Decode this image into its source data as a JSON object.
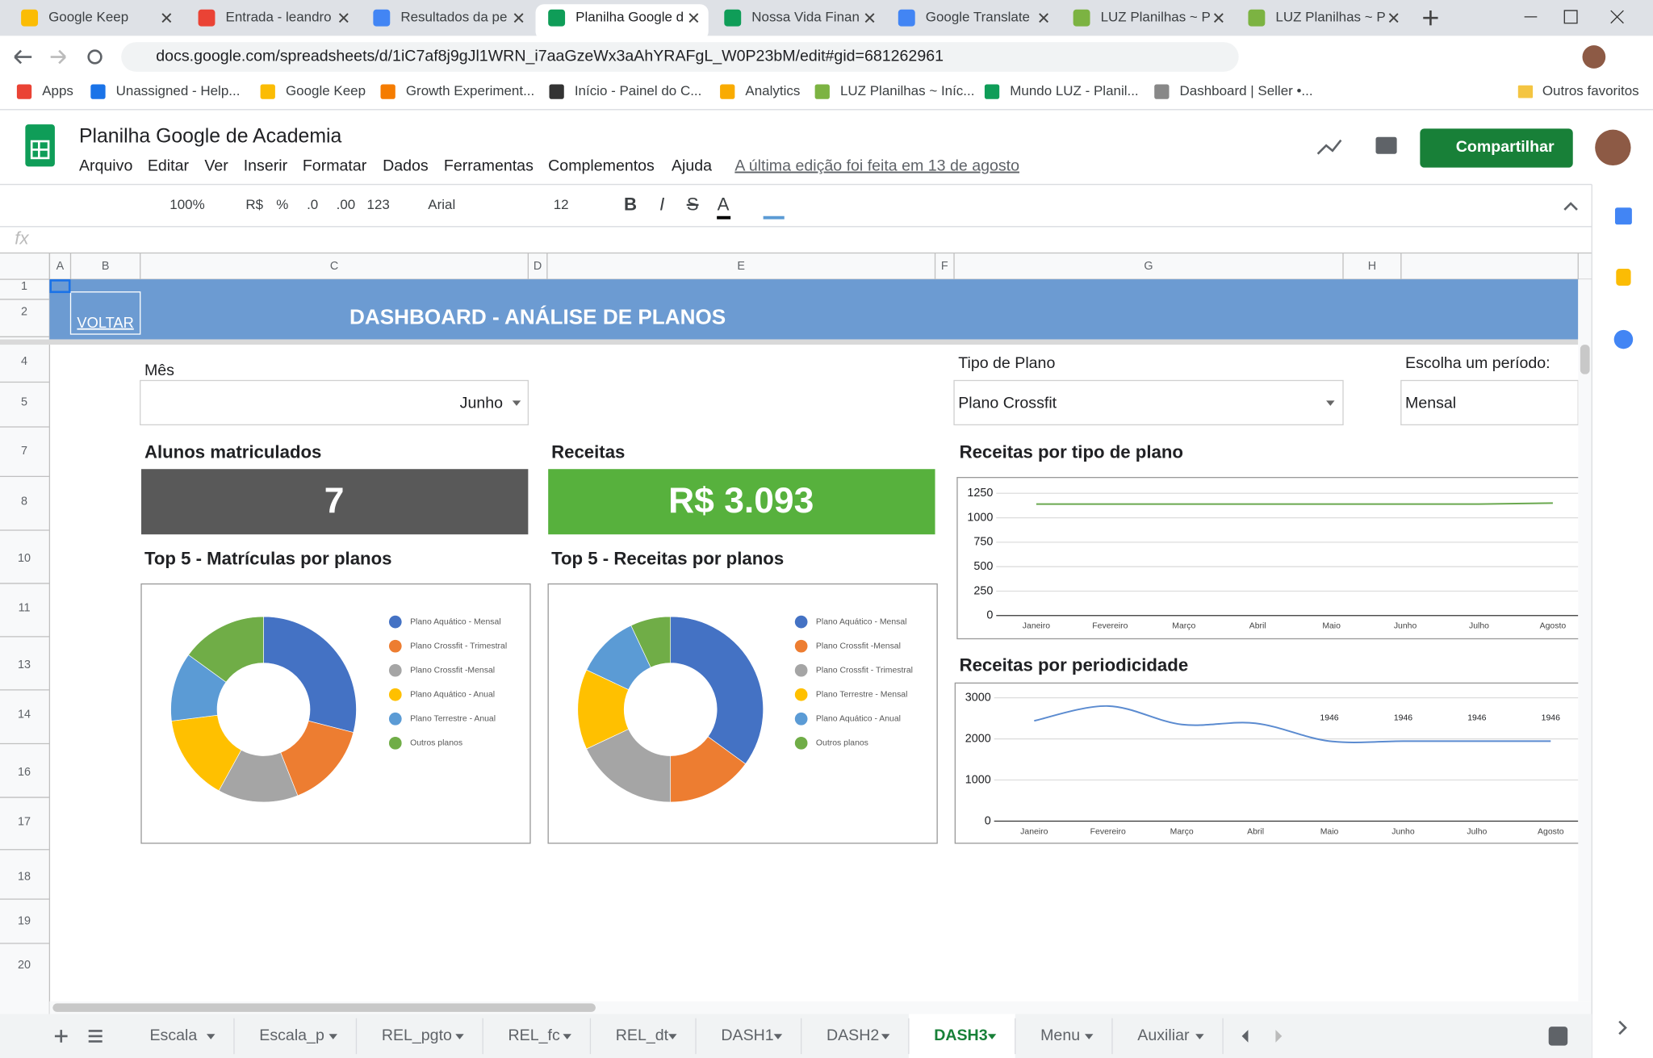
{
  "browser": {
    "tabs": [
      "Google Keep",
      "Entrada - leandro",
      "Resultados da pe",
      "Planilha Google d",
      "Nossa Vida Finan",
      "Google Translate",
      "LUZ Planilhas ~ P",
      "LUZ Planilhas ~ P"
    ],
    "active_tab": 3,
    "url": "docs.google.com/spreadsheets/d/1iC7af8j9gJl1WRN_i7aaGzeWx3aAhYRAFgL_W0P23bM/edit#gid=681262961",
    "bookmarks": [
      "Apps",
      "Unassigned - Help...",
      "Google Keep",
      "Growth Experiment...",
      "Início - Painel do C...",
      "Analytics",
      "LUZ Planilhas ~ Iníc...",
      "Mundo LUZ - Planil...",
      "Dashboard | Seller •..."
    ],
    "other_bookmarks": "Outros favoritos"
  },
  "app": {
    "title": "Planilha Google de Academia",
    "menu": [
      "Arquivo",
      "Editar",
      "Ver",
      "Inserir",
      "Formatar",
      "Dados",
      "Ferramentas",
      "Complementos",
      "Ajuda"
    ],
    "last_edit": "A última edição foi feita em 13 de agosto",
    "share": "Compartilhar"
  },
  "toolbar": {
    "items": [
      "100%",
      "R$",
      "%",
      ".0",
      ".00",
      "123",
      "Arial",
      "12",
      "B",
      "I",
      "S",
      "A"
    ]
  },
  "formula_bar": {
    "label": "fx"
  },
  "grid": {
    "columns": [
      "A",
      "B",
      "C",
      "D",
      "E",
      "F",
      "G",
      "H"
    ],
    "rows": [
      "1",
      "2",
      "4",
      "5",
      "7",
      "8",
      "10",
      "11",
      "13",
      "14",
      "16",
      "17",
      "18",
      "19",
      "20"
    ]
  },
  "dashboard": {
    "back": "VOLTAR",
    "title": "DASHBOARD - ANÁLISE DE PLANOS",
    "filters": [
      {
        "label": "Mês",
        "value": "Junho"
      },
      {
        "label": "Tipo de Plano",
        "value": "Plano Crossfit"
      },
      {
        "label": "Escolha um período:",
        "value": "Mensal"
      }
    ],
    "kpis": [
      {
        "label": "Alunos matriculados",
        "value": "7",
        "color": "#595959"
      },
      {
        "label": "Receitas",
        "value": "R$ 3.093",
        "color": "#57b13d"
      }
    ]
  },
  "chart_data": [
    {
      "type": "pie",
      "donut": true,
      "title": "Top 5 - Matrículas por planos",
      "categories": [
        "Plano Aquático - Mensal",
        "Plano Crossfit - Trimestral",
        "Plano Crossfit -Mensal",
        "Plano Aquático - Anual",
        "Plano Terrestre - Anual",
        "Outros planos"
      ],
      "values": [
        29,
        15,
        14,
        15,
        12,
        15
      ],
      "colors": [
        "#4472c4",
        "#ed7d31",
        "#a5a5a5",
        "#ffc000",
        "#5b9bd5",
        "#70ad47"
      ]
    },
    {
      "type": "pie",
      "donut": true,
      "title": "Top 5 - Receitas por planos",
      "categories": [
        "Plano Aquático - Mensal",
        "Plano Crossfit -Mensal",
        "Plano Crossfit - Trimestral",
        "Plano Terrestre - Mensal",
        "Plano Aquático - Anual",
        "Outros planos"
      ],
      "values": [
        35,
        15,
        18,
        14,
        11,
        7
      ],
      "colors": [
        "#4472c4",
        "#ed7d31",
        "#a5a5a5",
        "#ffc000",
        "#5b9bd5",
        "#70ad47"
      ]
    },
    {
      "type": "line",
      "title": "Receitas por tipo de plano",
      "categories": [
        "Janeiro",
        "Fevereiro",
        "Março",
        "Abril",
        "Maio",
        "Junho",
        "Julho",
        "Agosto"
      ],
      "values": [
        1140,
        1140,
        1140,
        1140,
        1140,
        1140,
        1140,
        1150
      ],
      "color": "#6aa84f",
      "smooth": false,
      "ylim": [
        0,
        1250
      ],
      "yticks": [
        0,
        250,
        500,
        750,
        1000,
        1250
      ],
      "grid": true
    },
    {
      "type": "line",
      "title": "Receitas por periodicidade",
      "categories": [
        "Janeiro",
        "Fevereiro",
        "Março",
        "Abril",
        "Maio",
        "Junho",
        "Julho",
        "Agosto"
      ],
      "values": [
        2440,
        2800,
        2350,
        2380,
        1946,
        1946,
        1946,
        1946
      ],
      "value_labels": [
        null,
        null,
        null,
        null,
        "1946",
        "1946",
        "1946",
        "1946"
      ],
      "color": "#5b8bd0",
      "smooth": true,
      "ylim": [
        0,
        3000
      ],
      "yticks": [
        0,
        1000,
        2000,
        3000
      ],
      "grid": true
    }
  ],
  "sheets": {
    "tabs": [
      "Escala",
      "Escala_p",
      "REL_pgto",
      "REL_fc",
      "REL_dt",
      "DASH1",
      "DASH2",
      "DASH3",
      "Menu",
      "Auxiliar"
    ],
    "active": 7
  }
}
